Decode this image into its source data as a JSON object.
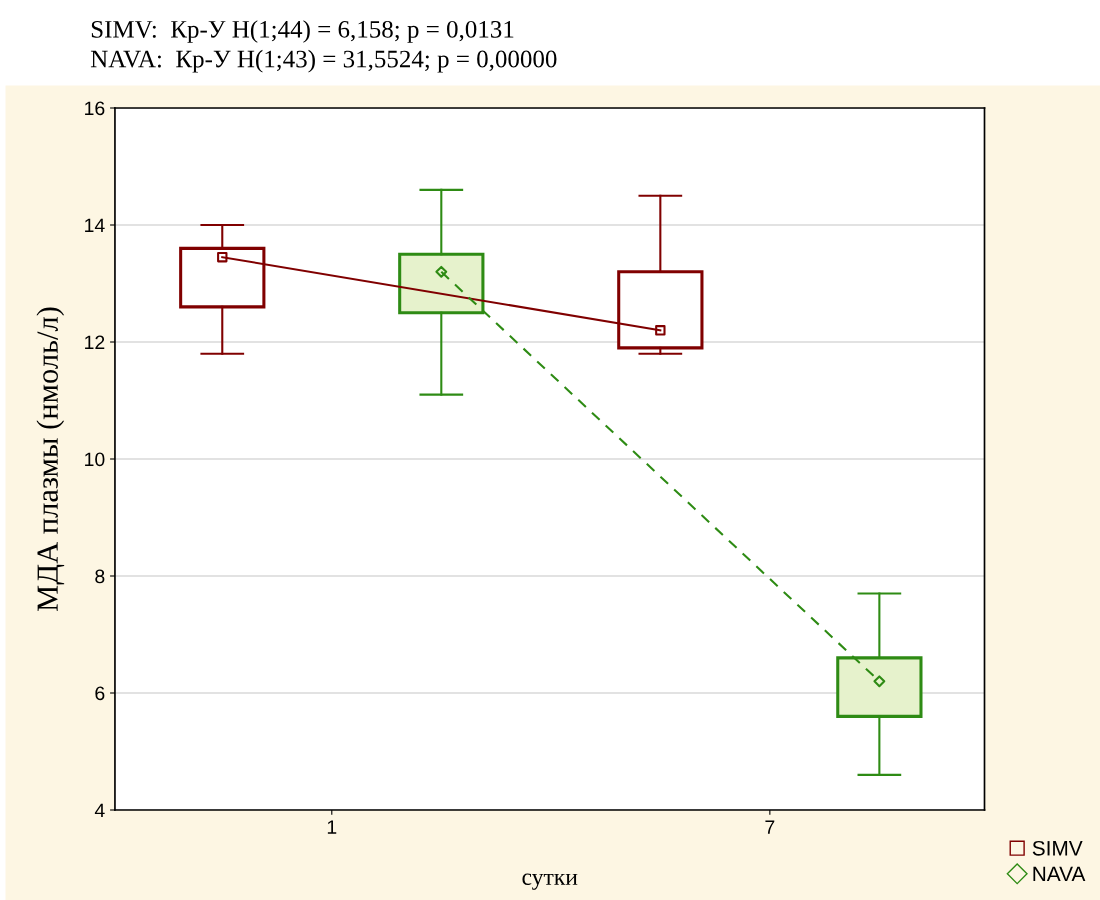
{
  "chart_data": {
    "type": "box",
    "annotations": [
      "SIMV:  Кр-У H(1;44) = 6,158; p = 0,0131",
      "NAVA:  Кр-У H(1;43) = 31,5524; p = 0,00000"
    ],
    "xlabel": "сутки",
    "ylabel": "МДА плазмы (нмоль/л)",
    "categories": [
      "1",
      "7"
    ],
    "ylim": [
      4,
      16
    ],
    "yticks": [
      4,
      6,
      8,
      10,
      12,
      14,
      16
    ],
    "grid": "y",
    "legend": "bottom right",
    "series": [
      {
        "name": "SIMV",
        "color": "#800000",
        "marker": "square",
        "boxes": [
          {
            "low": 11.8,
            "q1": 12.6,
            "median": 13.45,
            "q3": 13.6,
            "high": 14.0
          },
          {
            "low": 11.8,
            "q1": 11.9,
            "median": 12.2,
            "q3": 13.2,
            "high": 14.5
          }
        ]
      },
      {
        "name": "NAVA",
        "color": "#2e8b14",
        "marker": "diamond",
        "boxes": [
          {
            "low": 11.1,
            "q1": 12.5,
            "median": 13.2,
            "q3": 13.5,
            "high": 14.6
          },
          {
            "low": 4.6,
            "q1": 5.6,
            "median": 6.2,
            "q3": 6.6,
            "high": 7.7
          }
        ]
      },
      {
        "type": "line",
        "color": "#800000",
        "line_style": "solid",
        "values": [
          13.45,
          12.2
        ]
      },
      {
        "type": "line",
        "color": "#2e8b14",
        "line_style": "dashed",
        "values": [
          13.2,
          6.2
        ]
      }
    ]
  }
}
